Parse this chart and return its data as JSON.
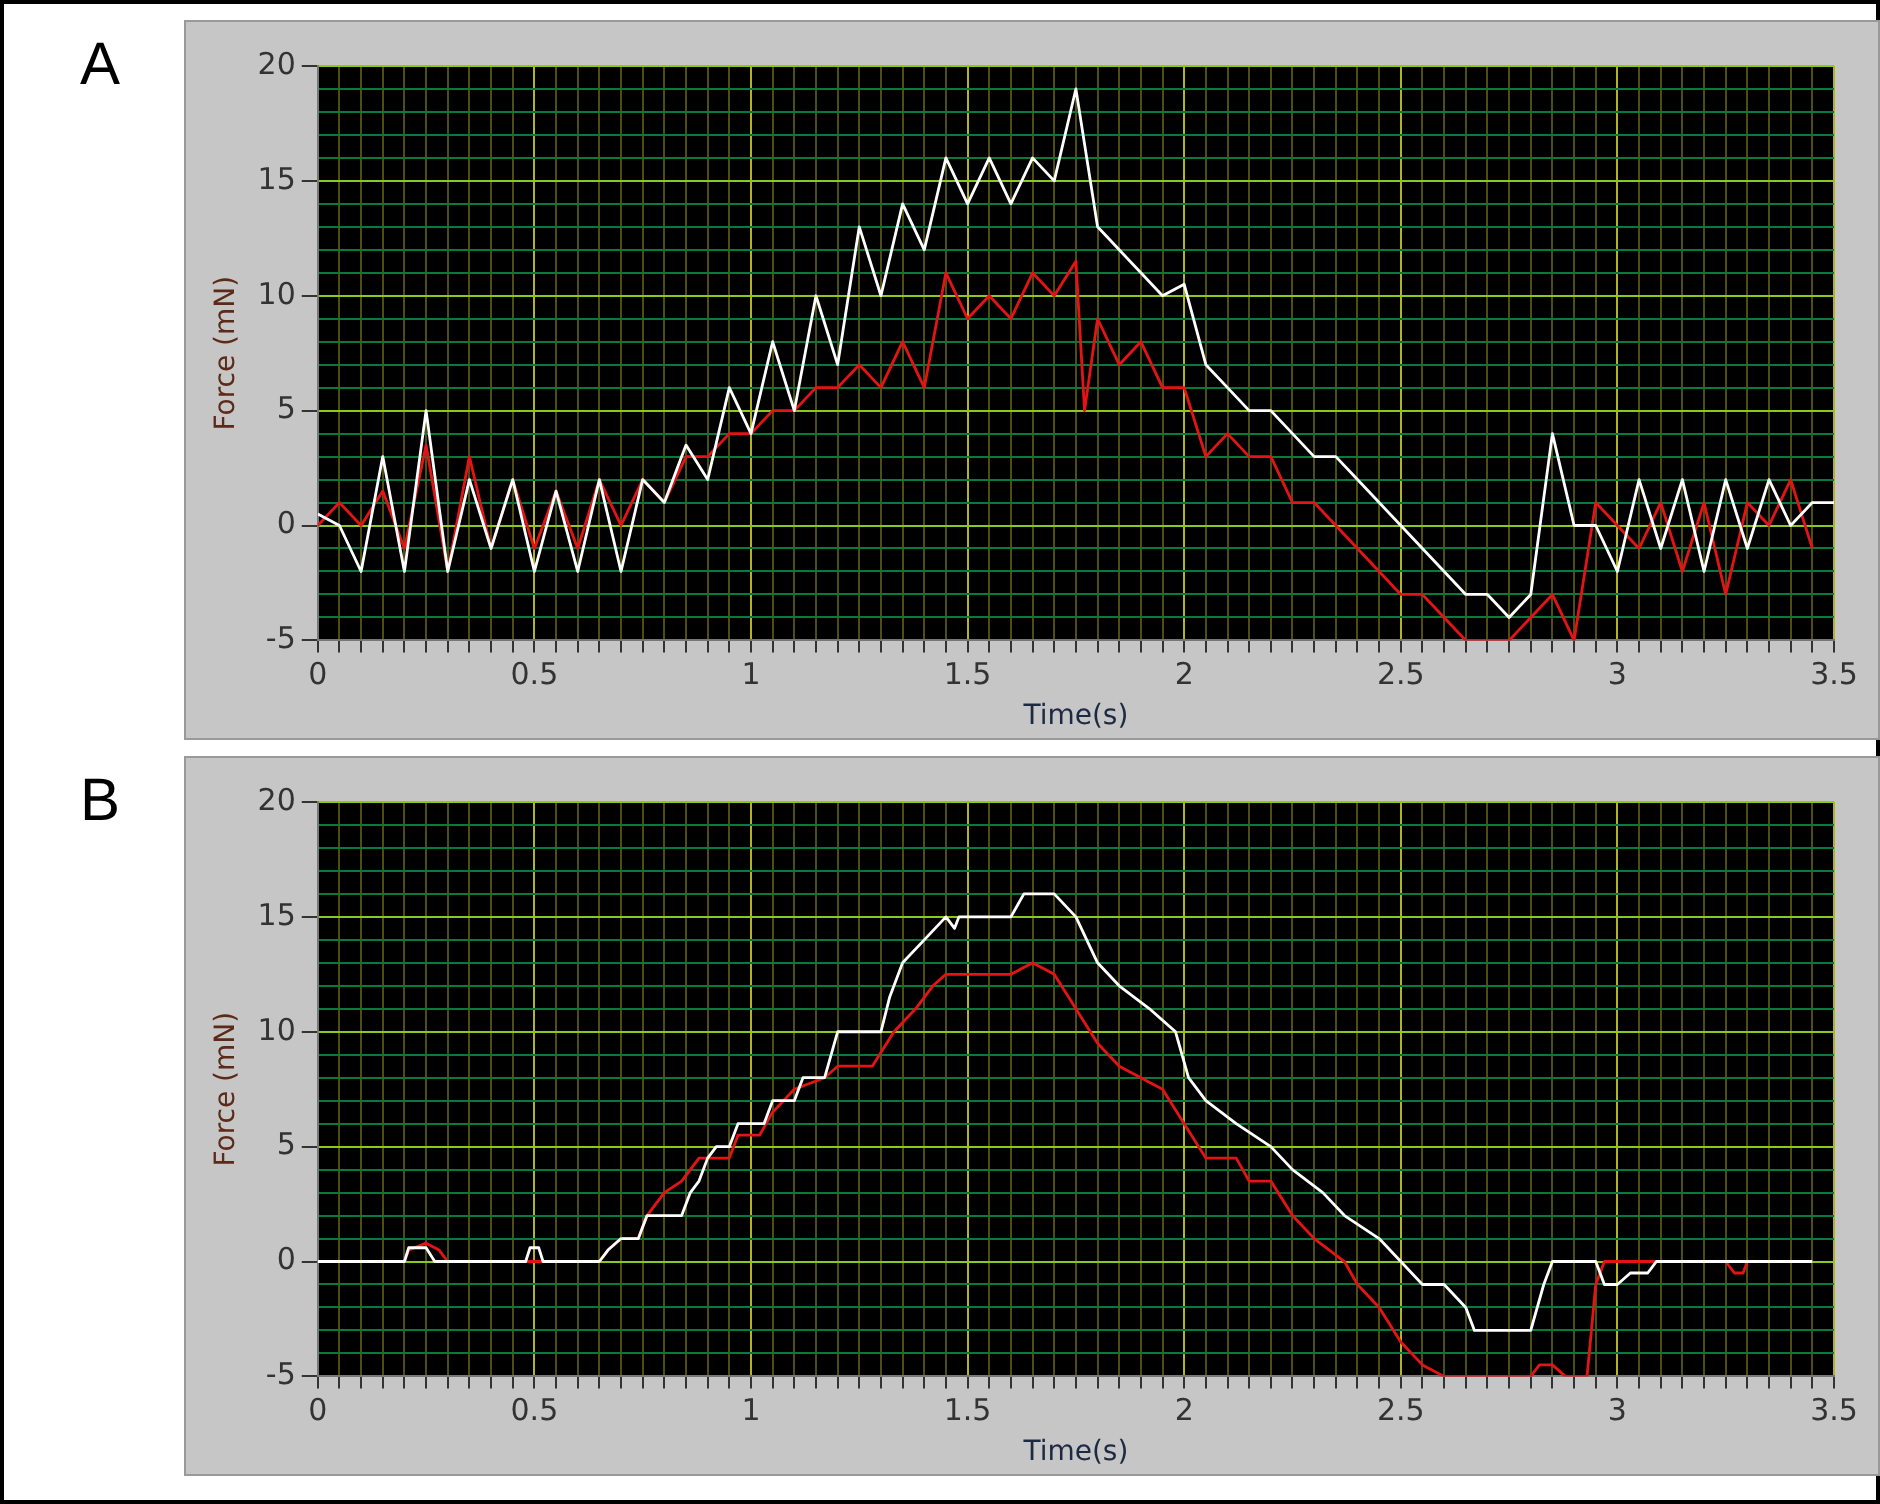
{
  "chart_data": [
    {
      "type": "line",
      "annotations": [
        "A"
      ],
      "xlabel": "Time(s)",
      "ylabel": "Force (mN)",
      "grid": true,
      "xlim": [
        0,
        3.5
      ],
      "ylim": [
        -5,
        20
      ],
      "xticks": [
        0,
        {
          "value": 0.05,
          "label": null
        },
        {
          "value": 0.1,
          "label": null
        },
        {
          "value": 0.15,
          "label": null
        },
        {
          "value": 0.2,
          "label": null
        },
        {
          "value": 0.25,
          "label": null
        },
        {
          "value": 0.3,
          "label": null
        },
        {
          "value": 0.35,
          "label": null
        },
        {
          "value": 0.4,
          "label": null
        },
        {
          "value": 0.45,
          "label": null
        },
        0.5,
        {
          "value": 0.55,
          "label": null
        },
        {
          "value": 0.6,
          "label": null
        },
        {
          "value": 0.65,
          "label": null
        },
        {
          "value": 0.7,
          "label": null
        },
        {
          "value": 0.75,
          "label": null
        },
        {
          "value": 0.8,
          "label": null
        },
        {
          "value": 0.85,
          "label": null
        },
        {
          "value": 0.9,
          "label": null
        },
        {
          "value": 0.95,
          "label": null
        },
        1,
        {
          "value": 1.05,
          "label": null
        },
        {
          "value": 1.1,
          "label": null
        },
        {
          "value": 1.15,
          "label": null
        },
        {
          "value": 1.2,
          "label": null
        },
        {
          "value": 1.25,
          "label": null
        },
        {
          "value": 1.3,
          "label": null
        },
        {
          "value": 1.35,
          "label": null
        },
        {
          "value": 1.4,
          "label": null
        },
        {
          "value": 1.45,
          "label": null
        },
        1.5,
        {
          "value": 1.55,
          "label": null
        },
        {
          "value": 1.6,
          "label": null
        },
        {
          "value": 1.65,
          "label": null
        },
        {
          "value": 1.7,
          "label": null
        },
        {
          "value": 1.75,
          "label": null
        },
        {
          "value": 1.8,
          "label": null
        },
        {
          "value": 1.85,
          "label": null
        },
        {
          "value": 1.9,
          "label": null
        },
        {
          "value": 1.95,
          "label": null
        },
        2,
        {
          "value": 2.05,
          "label": null
        },
        {
          "value": 2.1,
          "label": null
        },
        {
          "value": 2.15,
          "label": null
        },
        {
          "value": 2.2,
          "label": null
        },
        {
          "value": 2.25,
          "label": null
        },
        {
          "value": 2.3,
          "label": null
        },
        {
          "value": 2.35,
          "label": null
        },
        {
          "value": 2.4,
          "label": null
        },
        {
          "value": 2.45,
          "label": null
        },
        2.5,
        {
          "value": 2.55,
          "label": null
        },
        {
          "value": 2.6,
          "label": null
        },
        {
          "value": 2.65,
          "label": null
        },
        {
          "value": 2.7,
          "label": null
        },
        {
          "value": 2.75,
          "label": null
        },
        {
          "value": 2.8,
          "label": null
        },
        {
          "value": 2.85,
          "label": null
        },
        {
          "value": 2.9,
          "label": null
        },
        {
          "value": 2.95,
          "label": null
        },
        3,
        {
          "value": 3.05,
          "label": null
        },
        {
          "value": 3.1,
          "label": null
        },
        {
          "value": 3.15,
          "label": null
        },
        {
          "value": 3.2,
          "label": null
        },
        {
          "value": 3.25,
          "label": null
        },
        {
          "value": 3.3,
          "label": null
        },
        {
          "value": 3.35,
          "label": null
        },
        {
          "value": 3.4,
          "label": null
        },
        {
          "value": 3.45,
          "label": null
        },
        3.5
      ],
      "yticks": [
        -5,
        {
          "value": -4,
          "label": null
        },
        {
          "value": -3,
          "label": null
        },
        {
          "value": -2,
          "label": null
        },
        {
          "value": -1,
          "label": null
        },
        0,
        {
          "value": 1,
          "label": null
        },
        {
          "value": 2,
          "label": null
        },
        {
          "value": 3,
          "label": null
        },
        {
          "value": 4,
          "label": null
        },
        5,
        {
          "value": 6,
          "label": null
        },
        {
          "value": 7,
          "label": null
        },
        {
          "value": 8,
          "label": null
        },
        {
          "value": 9,
          "label": null
        },
        10,
        {
          "value": 11,
          "label": null
        },
        {
          "value": 12,
          "label": null
        },
        {
          "value": 13,
          "label": null
        },
        {
          "value": 14,
          "label": null
        },
        15,
        {
          "value": 16,
          "label": null
        },
        {
          "value": 17,
          "label": null
        },
        {
          "value": 18,
          "label": null
        },
        {
          "value": 19,
          "label": null
        },
        20
      ],
      "series": [
        {
          "color": "#ffffff",
          "x": [
            0,
            0.05,
            0.1,
            0.15,
            0.2,
            0.25,
            0.3,
            0.35,
            0.4,
            0.45,
            0.5,
            0.55,
            0.6,
            0.65,
            0.7,
            0.75,
            0.8,
            0.85,
            0.9,
            0.95,
            1,
            1.05,
            1.1,
            1.15,
            1.2,
            1.25,
            1.3,
            1.35,
            1.4,
            1.45,
            1.5,
            1.55,
            1.6,
            1.65,
            1.7,
            1.75,
            1.8,
            1.85,
            1.9,
            1.95,
            2,
            2.05,
            2.1,
            2.15,
            2.2,
            2.25,
            2.3,
            2.35,
            2.4,
            2.45,
            2.5,
            2.55,
            2.6,
            2.65,
            2.7,
            2.75,
            2.8,
            2.85,
            2.9,
            2.95,
            3,
            3.05,
            3.1,
            3.15,
            3.2,
            3.25,
            3.3,
            3.35,
            3.4,
            3.45,
            3.5
          ],
          "values": [
            0.5,
            0,
            -2,
            3,
            -2,
            5,
            -2,
            2,
            -1,
            2,
            -2,
            1.5,
            -2,
            2,
            -2,
            2,
            1,
            3.5,
            2,
            6,
            4,
            8,
            5,
            10,
            7,
            13,
            10,
            14,
            12,
            16,
            14,
            16,
            14,
            16,
            15,
            19,
            13,
            12,
            11,
            10,
            10.5,
            7,
            6,
            5,
            5,
            4,
            3,
            3,
            2,
            1,
            0,
            -1,
            -2,
            -3,
            -3,
            -4,
            -3,
            4,
            0,
            0,
            -2,
            2,
            -1,
            2,
            -2,
            2,
            -1,
            2,
            0,
            1,
            1
          ]
        },
        {
          "color": "#e41414",
          "x": [
            0,
            0.05,
            0.1,
            0.15,
            0.2,
            0.25,
            0.3,
            0.35,
            0.4,
            0.45,
            0.5,
            0.55,
            0.6,
            0.65,
            0.7,
            0.75,
            0.8,
            0.85,
            0.9,
            0.95,
            1,
            1.05,
            1.1,
            1.15,
            1.2,
            1.25,
            1.3,
            1.35,
            1.4,
            1.45,
            1.5,
            1.55,
            1.6,
            1.65,
            1.7,
            1.75,
            1.77,
            1.8,
            1.85,
            1.9,
            1.95,
            2,
            2.05,
            2.1,
            2.15,
            2.2,
            2.25,
            2.3,
            2.35,
            2.4,
            2.45,
            2.5,
            2.55,
            2.6,
            2.65,
            2.7,
            2.75,
            2.8,
            2.85,
            2.9,
            2.95,
            3,
            3.05,
            3.1,
            3.15,
            3.2,
            3.25,
            3.3,
            3.35,
            3.4,
            3.45
          ],
          "values": [
            0,
            1,
            0,
            1.5,
            -1,
            3.5,
            -2,
            3,
            -1,
            2,
            -1,
            1.5,
            -1,
            2,
            0,
            2,
            1,
            3,
            3,
            4,
            4,
            5,
            5,
            6,
            6,
            7,
            6,
            8,
            6,
            11,
            9,
            10,
            9,
            11,
            10,
            11.5,
            5,
            9,
            7,
            8,
            6,
            6,
            3,
            4,
            3,
            3,
            1,
            1,
            0,
            -1,
            -2,
            -3,
            -3,
            -4,
            -5,
            -5,
            -5,
            -4,
            -3,
            -5,
            1,
            0,
            -1,
            1,
            -2,
            1,
            -3,
            1,
            0,
            2,
            -1
          ]
        }
      ]
    },
    {
      "type": "line",
      "annotations": [
        "B"
      ],
      "xlabel": "Time(s)",
      "ylabel": "Force (mN)",
      "grid": true,
      "xlim": [
        0,
        3.5
      ],
      "ylim": [
        -5,
        20
      ],
      "xticks": [
        0,
        {
          "value": 0.05,
          "label": null
        },
        {
          "value": 0.1,
          "label": null
        },
        {
          "value": 0.15,
          "label": null
        },
        {
          "value": 0.2,
          "label": null
        },
        {
          "value": 0.25,
          "label": null
        },
        {
          "value": 0.3,
          "label": null
        },
        {
          "value": 0.35,
          "label": null
        },
        {
          "value": 0.4,
          "label": null
        },
        {
          "value": 0.45,
          "label": null
        },
        0.5,
        {
          "value": 0.55,
          "label": null
        },
        {
          "value": 0.6,
          "label": null
        },
        {
          "value": 0.65,
          "label": null
        },
        {
          "value": 0.7,
          "label": null
        },
        {
          "value": 0.75,
          "label": null
        },
        {
          "value": 0.8,
          "label": null
        },
        {
          "value": 0.85,
          "label": null
        },
        {
          "value": 0.9,
          "label": null
        },
        {
          "value": 0.95,
          "label": null
        },
        1,
        {
          "value": 1.05,
          "label": null
        },
        {
          "value": 1.1,
          "label": null
        },
        {
          "value": 1.15,
          "label": null
        },
        {
          "value": 1.2,
          "label": null
        },
        {
          "value": 1.25,
          "label": null
        },
        {
          "value": 1.3,
          "label": null
        },
        {
          "value": 1.35,
          "label": null
        },
        {
          "value": 1.4,
          "label": null
        },
        {
          "value": 1.45,
          "label": null
        },
        1.5,
        {
          "value": 1.55,
          "label": null
        },
        {
          "value": 1.6,
          "label": null
        },
        {
          "value": 1.65,
          "label": null
        },
        {
          "value": 1.7,
          "label": null
        },
        {
          "value": 1.75,
          "label": null
        },
        {
          "value": 1.8,
          "label": null
        },
        {
          "value": 1.85,
          "label": null
        },
        {
          "value": 1.9,
          "label": null
        },
        {
          "value": 1.95,
          "label": null
        },
        2,
        {
          "value": 2.05,
          "label": null
        },
        {
          "value": 2.1,
          "label": null
        },
        {
          "value": 2.15,
          "label": null
        },
        {
          "value": 2.2,
          "label": null
        },
        {
          "value": 2.25,
          "label": null
        },
        {
          "value": 2.3,
          "label": null
        },
        {
          "value": 2.35,
          "label": null
        },
        {
          "value": 2.4,
          "label": null
        },
        {
          "value": 2.45,
          "label": null
        },
        2.5,
        {
          "value": 2.55,
          "label": null
        },
        {
          "value": 2.6,
          "label": null
        },
        {
          "value": 2.65,
          "label": null
        },
        {
          "value": 2.7,
          "label": null
        },
        {
          "value": 2.75,
          "label": null
        },
        {
          "value": 2.8,
          "label": null
        },
        {
          "value": 2.85,
          "label": null
        },
        {
          "value": 2.9,
          "label": null
        },
        {
          "value": 2.95,
          "label": null
        },
        3,
        {
          "value": 3.05,
          "label": null
        },
        {
          "value": 3.1,
          "label": null
        },
        {
          "value": 3.15,
          "label": null
        },
        {
          "value": 3.2,
          "label": null
        },
        {
          "value": 3.25,
          "label": null
        },
        {
          "value": 3.3,
          "label": null
        },
        {
          "value": 3.35,
          "label": null
        },
        {
          "value": 3.4,
          "label": null
        },
        {
          "value": 3.45,
          "label": null
        },
        3.5
      ],
      "yticks": [
        -5,
        {
          "value": -4,
          "label": null
        },
        {
          "value": -3,
          "label": null
        },
        {
          "value": -2,
          "label": null
        },
        {
          "value": -1,
          "label": null
        },
        0,
        {
          "value": 1,
          "label": null
        },
        {
          "value": 2,
          "label": null
        },
        {
          "value": 3,
          "label": null
        },
        {
          "value": 4,
          "label": null
        },
        5,
        {
          "value": 6,
          "label": null
        },
        {
          "value": 7,
          "label": null
        },
        {
          "value": 8,
          "label": null
        },
        {
          "value": 9,
          "label": null
        },
        10,
        {
          "value": 11,
          "label": null
        },
        {
          "value": 12,
          "label": null
        },
        {
          "value": 13,
          "label": null
        },
        {
          "value": 14,
          "label": null
        },
        15,
        {
          "value": 16,
          "label": null
        },
        {
          "value": 17,
          "label": null
        },
        {
          "value": 18,
          "label": null
        },
        {
          "value": 19,
          "label": null
        },
        20
      ],
      "series": [
        {
          "color": "#ffffff",
          "x": [
            0,
            0.2,
            0.21,
            0.25,
            0.27,
            0.48,
            0.49,
            0.51,
            0.52,
            0.65,
            0.67,
            0.7,
            0.74,
            0.76,
            0.84,
            0.86,
            0.88,
            0.9,
            0.92,
            0.95,
            0.97,
            1.03,
            1.05,
            1.1,
            1.12,
            1.17,
            1.2,
            1.3,
            1.32,
            1.35,
            1.4,
            1.45,
            1.47,
            1.48,
            1.6,
            1.63,
            1.7,
            1.75,
            1.8,
            1.85,
            1.92,
            1.98,
            2.01,
            2.05,
            2.12,
            2.2,
            2.25,
            2.32,
            2.37,
            2.45,
            2.5,
            2.55,
            2.6,
            2.65,
            2.67,
            2.8,
            2.83,
            2.85,
            2.95,
            2.97,
            3,
            3.03,
            3.07,
            3.09,
            3.45
          ],
          "values": [
            0,
            0,
            0.6,
            0.6,
            0,
            0,
            0.6,
            0.6,
            0,
            0,
            0.5,
            1,
            1,
            2,
            2,
            3,
            3.5,
            4.5,
            5,
            5,
            6,
            6,
            7,
            7,
            8,
            8,
            10,
            10,
            11.5,
            13,
            14,
            15,
            14.5,
            15,
            15,
            16,
            16,
            15,
            13,
            12,
            11,
            10,
            8,
            7,
            6,
            5,
            4,
            3,
            2,
            1,
            0,
            -1,
            -1,
            -2,
            -3,
            -3,
            -1,
            0,
            0,
            -1,
            -1,
            -0.5,
            -0.5,
            0,
            0
          ]
        },
        {
          "color": "#e41414",
          "x": [
            0,
            0.2,
            0.21,
            0.25,
            0.28,
            0.3,
            0.65,
            0.67,
            0.7,
            0.74,
            0.76,
            0.8,
            0.84,
            0.88,
            0.95,
            0.97,
            1.02,
            1.05,
            1.1,
            1.17,
            1.2,
            1.28,
            1.33,
            1.38,
            1.42,
            1.45,
            1.6,
            1.65,
            1.7,
            1.75,
            1.8,
            1.85,
            1.9,
            1.95,
            2,
            2.05,
            2.12,
            2.15,
            2.2,
            2.25,
            2.3,
            2.37,
            2.4,
            2.45,
            2.5,
            2.55,
            2.6,
            2.65,
            2.7,
            2.75,
            2.78,
            2.8,
            2.82,
            2.85,
            2.88,
            2.9,
            2.93,
            2.95,
            2.97,
            3.25,
            3.27,
            3.29,
            3.3,
            3.45
          ],
          "values": [
            0,
            0,
            0.5,
            0.8,
            0.5,
            0,
            0,
            0.5,
            1,
            1,
            2,
            3,
            3.5,
            4.5,
            4.5,
            5.5,
            5.5,
            6.5,
            7.5,
            8,
            8.5,
            8.5,
            10,
            11,
            12,
            12.5,
            12.5,
            13,
            12.5,
            11,
            9.5,
            8.5,
            8,
            7.5,
            6,
            4.5,
            4.5,
            3.5,
            3.5,
            2,
            1,
            0,
            -1,
            -2,
            -3.5,
            -4.5,
            -5,
            -5,
            -5,
            -5,
            -5,
            -5,
            -4.5,
            -4.5,
            -5,
            -5,
            -5,
            -1,
            0,
            0,
            -0.5,
            -0.5,
            0,
            0
          ]
        }
      ]
    }
  ]
}
